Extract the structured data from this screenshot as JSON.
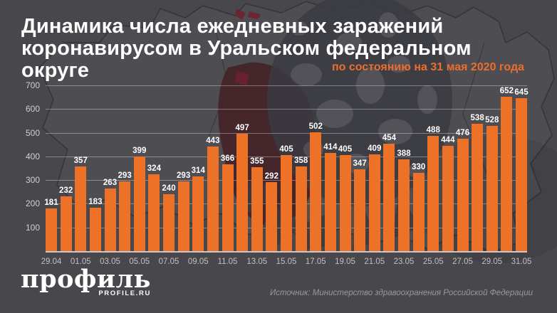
{
  "header": {
    "title_line1": "Динамика числа ежедневных заражений",
    "title_line2": "коронавирусом в Уральском федеральном округе",
    "subtitle": "по состоянию на 31 мая 2020 года"
  },
  "chart_data": {
    "type": "bar",
    "title": "Динамика числа ежедневных заражений коронавирусом в Уральском федеральном округе",
    "subtitle": "по состоянию на 31 мая 2020 года",
    "x": [
      "29.04",
      "30.04",
      "01.05",
      "02.05",
      "03.05",
      "04.05",
      "05.05",
      "06.05",
      "07.05",
      "08.05",
      "09.05",
      "10.05",
      "11.05",
      "12.05",
      "13.05",
      "14.05",
      "15.05",
      "16.05",
      "17.05",
      "18.05",
      "19.05",
      "20.05",
      "21.05",
      "22.05",
      "23.05",
      "24.05",
      "25.05",
      "26.05",
      "27.05",
      "28.05",
      "29.05",
      "30.05",
      "31.05"
    ],
    "values": [
      181,
      232,
      357,
      183,
      263,
      293,
      399,
      324,
      240,
      293,
      314,
      443,
      366,
      497,
      355,
      292,
      405,
      358,
      502,
      414,
      405,
      347,
      409,
      454,
      388,
      330,
      488,
      444,
      476,
      538,
      528,
      652,
      645
    ],
    "x_tick_labels": [
      "29.04",
      "01.05",
      "03.05",
      "05.05",
      "07.05",
      "09.05",
      "11.05",
      "13.05",
      "15.05",
      "17.05",
      "19.05",
      "21.05",
      "23.05",
      "25.05",
      "27.05",
      "29.05",
      "31.05"
    ],
    "y_ticks": [
      100,
      200,
      300,
      400,
      500,
      600,
      700
    ],
    "ylim": [
      0,
      700
    ],
    "grid": true,
    "legend": "none",
    "bar_color": "#ee7128",
    "value_labels": true
  },
  "footer": {
    "logo_text": "профиль",
    "logo_sub": "PROFILE.RU",
    "source": "Источник: Министерство здравоохранения Российской Федерации"
  },
  "colors": {
    "background": "#47474c",
    "bar": "#ee7128",
    "accent_orange": "#ee6d2d",
    "title_text": "#ffffff",
    "axis_text": "#cfcfd3",
    "gridline": "rgba(255,255,255,0.35)",
    "highlight_region": "#432429"
  }
}
